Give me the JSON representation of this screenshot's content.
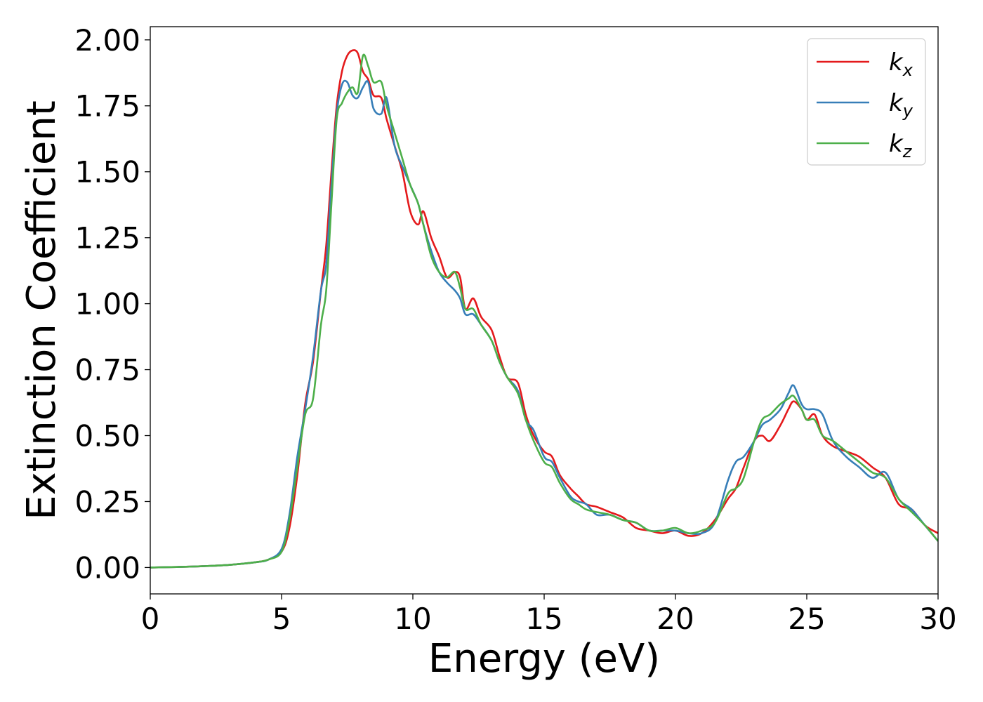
{
  "chart_data": {
    "type": "line",
    "title": "",
    "xlabel": "Energy (eV)",
    "ylabel": "Extinction Coefficient",
    "xlim": [
      0,
      30
    ],
    "ylim": [
      -0.1,
      2.05
    ],
    "xticks": [
      0,
      5,
      10,
      15,
      20,
      25,
      30
    ],
    "xtick_labels": [
      "0",
      "5",
      "10",
      "15",
      "20",
      "25",
      "30"
    ],
    "yticks": [
      0,
      0.25,
      0.5,
      0.75,
      1.0,
      1.25,
      1.5,
      1.75,
      2.0
    ],
    "ytick_labels": [
      "0.00",
      "0.25",
      "0.50",
      "0.75",
      "1.00",
      "1.25",
      "1.50",
      "1.75",
      "2.00"
    ],
    "grid": false,
    "legend_position": "top-right",
    "series": [
      {
        "name": "kx",
        "label_base": "k",
        "label_sub": "x",
        "color": "#e41a1c",
        "x": [
          0,
          1,
          2,
          3,
          4,
          4.5,
          5,
          5.3,
          5.6,
          5.9,
          6.2,
          6.5,
          6.7,
          6.9,
          7.1,
          7.3,
          7.5,
          7.7,
          7.9,
          8.1,
          8.3,
          8.5,
          8.8,
          9.0,
          9.3,
          9.6,
          9.9,
          10.2,
          10.4,
          10.7,
          11.0,
          11.3,
          11.6,
          11.8,
          12.0,
          12.3,
          12.6,
          13.0,
          13.3,
          13.6,
          14.0,
          14.3,
          14.6,
          15.0,
          15.3,
          15.6,
          16.0,
          16.3,
          16.6,
          17.0,
          17.5,
          18.0,
          18.5,
          19.0,
          19.5,
          20.0,
          20.5,
          21.0,
          21.5,
          22.0,
          22.3,
          22.6,
          23.0,
          23.3,
          23.6,
          24.0,
          24.3,
          24.5,
          24.8,
          25.0,
          25.3,
          25.6,
          26.0,
          26.5,
          27.0,
          27.5,
          28.0,
          28.5,
          29.0,
          29.5,
          30.0
        ],
        "y": [
          0.0,
          0.002,
          0.005,
          0.01,
          0.02,
          0.03,
          0.06,
          0.15,
          0.35,
          0.62,
          0.78,
          1.05,
          1.22,
          1.5,
          1.75,
          1.88,
          1.94,
          1.96,
          1.95,
          1.88,
          1.85,
          1.79,
          1.78,
          1.7,
          1.6,
          1.5,
          1.35,
          1.3,
          1.35,
          1.25,
          1.18,
          1.1,
          1.12,
          1.1,
          0.98,
          1.02,
          0.95,
          0.9,
          0.8,
          0.72,
          0.7,
          0.58,
          0.5,
          0.44,
          0.42,
          0.35,
          0.3,
          0.27,
          0.24,
          0.23,
          0.21,
          0.19,
          0.15,
          0.14,
          0.13,
          0.14,
          0.12,
          0.13,
          0.18,
          0.26,
          0.3,
          0.38,
          0.48,
          0.5,
          0.48,
          0.54,
          0.6,
          0.63,
          0.6,
          0.56,
          0.58,
          0.5,
          0.46,
          0.44,
          0.42,
          0.38,
          0.34,
          0.24,
          0.22,
          0.16,
          0.13
        ]
      },
      {
        "name": "ky",
        "label_base": "k",
        "label_sub": "y",
        "color": "#377eb8",
        "x": [
          0,
          1,
          2,
          3,
          4,
          4.5,
          5,
          5.3,
          5.6,
          5.9,
          6.2,
          6.5,
          6.7,
          6.9,
          7.1,
          7.3,
          7.5,
          7.7,
          7.9,
          8.1,
          8.3,
          8.5,
          8.8,
          9.0,
          9.3,
          9.6,
          9.9,
          10.2,
          10.4,
          10.7,
          11.0,
          11.3,
          11.6,
          11.8,
          12.0,
          12.3,
          12.6,
          13.0,
          13.3,
          13.6,
          14.0,
          14.3,
          14.6,
          15.0,
          15.3,
          15.6,
          16.0,
          16.3,
          16.6,
          17.0,
          17.5,
          18.0,
          18.5,
          19.0,
          19.5,
          20.0,
          20.5,
          21.0,
          21.5,
          22.0,
          22.3,
          22.6,
          23.0,
          23.3,
          23.6,
          24.0,
          24.3,
          24.5,
          24.8,
          25.0,
          25.3,
          25.6,
          26.0,
          26.5,
          27.0,
          27.5,
          28.0,
          28.5,
          29.0,
          29.5,
          30.0
        ],
        "y": [
          0.0,
          0.002,
          0.005,
          0.01,
          0.02,
          0.03,
          0.07,
          0.2,
          0.42,
          0.6,
          0.8,
          1.05,
          1.15,
          1.45,
          1.72,
          1.83,
          1.84,
          1.79,
          1.78,
          1.82,
          1.84,
          1.74,
          1.72,
          1.78,
          1.6,
          1.52,
          1.45,
          1.38,
          1.3,
          1.2,
          1.12,
          1.08,
          1.05,
          1.02,
          0.96,
          0.96,
          0.92,
          0.86,
          0.78,
          0.72,
          0.67,
          0.56,
          0.52,
          0.42,
          0.4,
          0.34,
          0.27,
          0.25,
          0.24,
          0.2,
          0.2,
          0.18,
          0.17,
          0.14,
          0.14,
          0.14,
          0.13,
          0.13,
          0.17,
          0.33,
          0.4,
          0.42,
          0.48,
          0.54,
          0.56,
          0.6,
          0.66,
          0.69,
          0.62,
          0.6,
          0.6,
          0.58,
          0.48,
          0.42,
          0.38,
          0.34,
          0.36,
          0.26,
          0.22,
          0.16,
          0.1
        ]
      },
      {
        "name": "kz",
        "label_base": "k",
        "label_sub": "z",
        "color": "#4daf4a",
        "x": [
          0,
          1,
          2,
          3,
          4,
          4.5,
          5,
          5.3,
          5.6,
          5.9,
          6.2,
          6.5,
          6.7,
          6.9,
          7.1,
          7.3,
          7.5,
          7.7,
          7.9,
          8.1,
          8.3,
          8.5,
          8.8,
          9.0,
          9.3,
          9.6,
          9.9,
          10.2,
          10.4,
          10.7,
          11.0,
          11.3,
          11.6,
          11.8,
          12.0,
          12.3,
          12.6,
          13.0,
          13.3,
          13.6,
          14.0,
          14.3,
          14.6,
          15.0,
          15.3,
          15.6,
          16.0,
          16.3,
          16.6,
          17.0,
          17.5,
          18.0,
          18.5,
          19.0,
          19.5,
          20.0,
          20.5,
          21.0,
          21.5,
          22.0,
          22.3,
          22.6,
          23.0,
          23.3,
          23.6,
          24.0,
          24.3,
          24.5,
          24.8,
          25.0,
          25.3,
          25.6,
          26.0,
          26.5,
          27.0,
          27.5,
          28.0,
          28.5,
          29.0,
          29.5,
          30.0
        ],
        "y": [
          0.0,
          0.002,
          0.005,
          0.01,
          0.02,
          0.03,
          0.06,
          0.18,
          0.38,
          0.58,
          0.64,
          0.92,
          1.05,
          1.38,
          1.7,
          1.76,
          1.8,
          1.82,
          1.8,
          1.94,
          1.9,
          1.84,
          1.84,
          1.75,
          1.65,
          1.55,
          1.45,
          1.38,
          1.3,
          1.18,
          1.12,
          1.1,
          1.12,
          1.06,
          0.98,
          0.98,
          0.92,
          0.86,
          0.78,
          0.72,
          0.66,
          0.56,
          0.48,
          0.4,
          0.38,
          0.32,
          0.26,
          0.24,
          0.22,
          0.21,
          0.2,
          0.18,
          0.17,
          0.14,
          0.14,
          0.15,
          0.13,
          0.14,
          0.17,
          0.28,
          0.3,
          0.34,
          0.48,
          0.56,
          0.58,
          0.62,
          0.64,
          0.65,
          0.6,
          0.56,
          0.56,
          0.5,
          0.48,
          0.44,
          0.4,
          0.36,
          0.34,
          0.26,
          0.21,
          0.16,
          0.1
        ]
      }
    ]
  }
}
